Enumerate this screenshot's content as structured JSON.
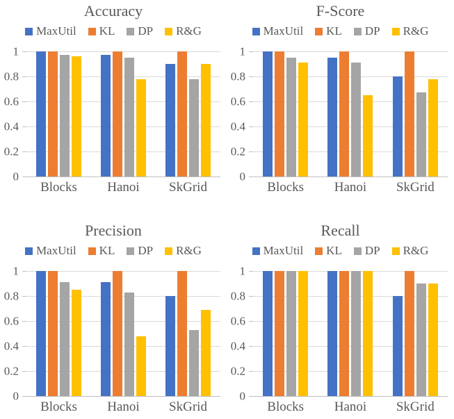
{
  "figure": {
    "background": "#FFFFFF",
    "text_color": "#595959",
    "gridline_color": "#D9D9D9",
    "axis_line_color": "#BFBFBF",
    "layout": "2x2-grid-of-bar-charts"
  },
  "chart_data": [
    {
      "type": "bar",
      "title": "Accuracy",
      "xlabel": "",
      "ylabel": "",
      "ylim": [
        0,
        1
      ],
      "grid": true,
      "legend_position": "top",
      "ytick_values": [
        1,
        0.8,
        0.6,
        0.4,
        0.2,
        0
      ],
      "ytick_labels": [
        "1",
        "0.8",
        "0.6",
        "0.4",
        "0.2",
        "0"
      ],
      "categories": [
        "Blocks",
        "Hanoi",
        "SkGrid"
      ],
      "series": [
        {
          "name": "MaxUtil",
          "color": "#4472C4",
          "values": [
            1.0,
            0.97,
            0.9
          ]
        },
        {
          "name": "KL",
          "color": "#ED7D31",
          "values": [
            1.0,
            1.0,
            1.0
          ]
        },
        {
          "name": "DP",
          "color": "#A5A5A5",
          "values": [
            0.97,
            0.95,
            0.78
          ]
        },
        {
          "name": "R&G",
          "color": "#FFC000",
          "values": [
            0.96,
            0.78,
            0.9
          ]
        }
      ]
    },
    {
      "type": "bar",
      "title": "F-Score",
      "xlabel": "",
      "ylabel": "",
      "ylim": [
        0,
        1
      ],
      "grid": true,
      "legend_position": "top",
      "ytick_values": [
        1,
        0.8,
        0.6,
        0.4,
        0.2,
        0
      ],
      "ytick_labels": [
        "1",
        "0.8",
        "0.6",
        "0.4",
        "0.2",
        "0"
      ],
      "categories": [
        "Blocks",
        "Hanoi",
        "SkGrid"
      ],
      "series": [
        {
          "name": "MaxUtil",
          "color": "#4472C4",
          "values": [
            1.0,
            0.95,
            0.8
          ]
        },
        {
          "name": "KL",
          "color": "#ED7D31",
          "values": [
            1.0,
            1.0,
            1.0
          ]
        },
        {
          "name": "DP",
          "color": "#A5A5A5",
          "values": [
            0.95,
            0.91,
            0.67
          ]
        },
        {
          "name": "R&G",
          "color": "#FFC000",
          "values": [
            0.91,
            0.65,
            0.78
          ]
        }
      ]
    },
    {
      "type": "bar",
      "title": "Precision",
      "xlabel": "",
      "ylabel": "",
      "ylim": [
        0,
        1
      ],
      "grid": true,
      "legend_position": "top",
      "ytick_values": [
        1,
        0.8,
        0.6,
        0.4,
        0.2,
        0
      ],
      "ytick_labels": [
        "1",
        "0.8",
        "0.6",
        "0.4",
        "0.2",
        "0"
      ],
      "categories": [
        "Blocks",
        "Hanoi",
        "SkGrid"
      ],
      "series": [
        {
          "name": "MaxUtil",
          "color": "#4472C4",
          "values": [
            1.0,
            0.91,
            0.8
          ]
        },
        {
          "name": "KL",
          "color": "#ED7D31",
          "values": [
            1.0,
            1.0,
            1.0
          ]
        },
        {
          "name": "DP",
          "color": "#A5A5A5",
          "values": [
            0.91,
            0.83,
            0.53
          ]
        },
        {
          "name": "R&G",
          "color": "#FFC000",
          "values": [
            0.85,
            0.48,
            0.69
          ]
        }
      ]
    },
    {
      "type": "bar",
      "title": "Recall",
      "xlabel": "",
      "ylabel": "",
      "ylim": [
        0,
        1
      ],
      "grid": true,
      "legend_position": "top",
      "ytick_values": [
        1,
        0.8,
        0.6,
        0.4,
        0.2,
        0
      ],
      "ytick_labels": [
        "1",
        "0.8",
        "0.6",
        "0.4",
        "0.2",
        "0"
      ],
      "categories": [
        "Blocks",
        "Hanoi",
        "SkGrid"
      ],
      "series": [
        {
          "name": "MaxUtil",
          "color": "#4472C4",
          "values": [
            1.0,
            1.0,
            0.8
          ]
        },
        {
          "name": "KL",
          "color": "#ED7D31",
          "values": [
            1.0,
            1.0,
            1.0
          ]
        },
        {
          "name": "DP",
          "color": "#A5A5A5",
          "values": [
            1.0,
            1.0,
            0.9
          ]
        },
        {
          "name": "R&G",
          "color": "#FFC000",
          "values": [
            1.0,
            1.0,
            0.9
          ]
        }
      ]
    }
  ]
}
